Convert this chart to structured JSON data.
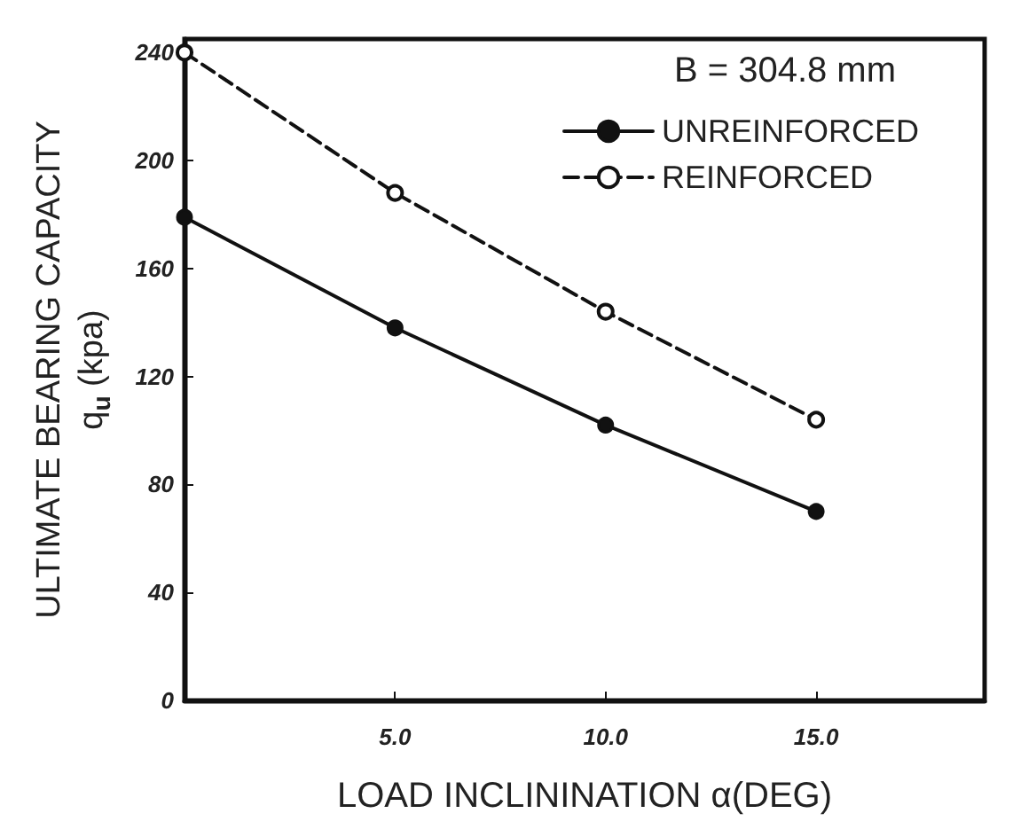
{
  "chart_data": {
    "type": "line",
    "xlabel": "LOAD INCLININATION α(DEG)",
    "ylabel": "ULTIMATE BEARING CAPACITY\nq$_{u}$ (kpa)",
    "legend_title": "B = 304.8 mm",
    "x": [
      0,
      5,
      10,
      15
    ],
    "series": [
      {
        "name": "UNREINFORCED",
        "color": "#111111",
        "values": [
          179,
          138,
          102,
          70
        ],
        "line_style": "solid",
        "marker": "circle"
      },
      {
        "name": "REINFORCED",
        "color": "#111111",
        "values": [
          240,
          188,
          144,
          104
        ],
        "line_style": "dashed",
        "marker": "circle"
      }
    ],
    "xlim": [
      0,
      19
    ],
    "xticks": [
      {
        "value": 5,
        "label": "5.0"
      },
      {
        "value": 10,
        "label": "10.0"
      },
      {
        "value": 15,
        "label": "15.0"
      }
    ],
    "ylim": [
      0,
      245
    ],
    "yticks": [
      0,
      40,
      80,
      120,
      160,
      200,
      240
    ],
    "grid": false,
    "legend": "top right"
  }
}
